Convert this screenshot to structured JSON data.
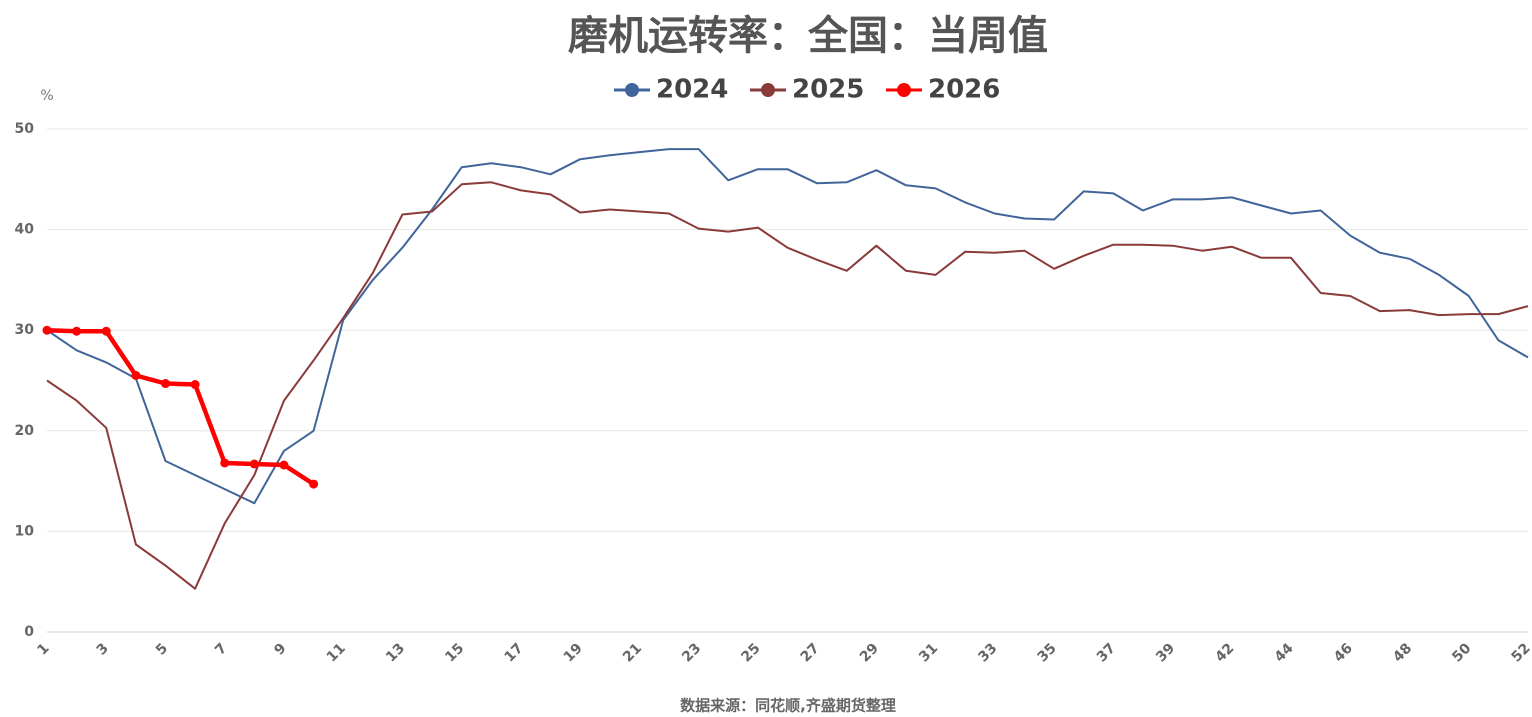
{
  "chart_data": {
    "type": "line",
    "title": "磨机运转率：全国：当周值",
    "y_unit": "%",
    "source": "数据来源：同花顺,齐盛期货整理",
    "categories": [
      1,
      null,
      3,
      null,
      5,
      null,
      7,
      null,
      9,
      null,
      11,
      null,
      13,
      null,
      15,
      null,
      17,
      null,
      19,
      null,
      21,
      null,
      23,
      null,
      25,
      null,
      27,
      null,
      29,
      null,
      31,
      null,
      33,
      null,
      35,
      null,
      37,
      null,
      39,
      null,
      42,
      null,
      44,
      null,
      46,
      null,
      48,
      null,
      50,
      null,
      52
    ],
    "series": [
      {
        "name": "2024",
        "color": "#41659a",
        "width": 2,
        "markers": false,
        "values": [
          30,
          28,
          26.8,
          25.2,
          17,
          15.6,
          14.2,
          12.8,
          18,
          20,
          31,
          35,
          38.2,
          42,
          46.2,
          46.6,
          46.2,
          45.5,
          47,
          47.4,
          47.7,
          48,
          48,
          44.9,
          46,
          46,
          44.6,
          44.7,
          45.9,
          44.4,
          44.1,
          42.7,
          41.6,
          41.1,
          41,
          43.8,
          43.6,
          41.9,
          43,
          43,
          43.2,
          42.4,
          41.6,
          41.9,
          39.4,
          37.7,
          37.1,
          35.5,
          33.4,
          29,
          27.3
        ]
      },
      {
        "name": "2025",
        "color": "#8b3a3a",
        "width": 2,
        "markers": false,
        "values": [
          25,
          23,
          20.3,
          8.7,
          6.6,
          4.3,
          10.8,
          15.6,
          23,
          27,
          31.2,
          35.7,
          41.5,
          41.8,
          44.5,
          44.7,
          43.9,
          43.5,
          41.7,
          42,
          41.8,
          41.6,
          40.1,
          39.8,
          40.2,
          38.2,
          37,
          35.9,
          38.4,
          35.9,
          35.5,
          37.8,
          37.7,
          37.9,
          36.1,
          37.4,
          38.5,
          38.5,
          38.4,
          37.9,
          38.3,
          37.2,
          37.2,
          33.7,
          33.4,
          31.9,
          32,
          31.5,
          31.6,
          31.6,
          32.4
        ]
      },
      {
        "name": "2026",
        "color": "#ff0000",
        "width": 4.5,
        "markers": true,
        "values": [
          30,
          29.9,
          29.9,
          25.5,
          24.7,
          24.6,
          16.8,
          16.7,
          16.6,
          14.7,
          null,
          null,
          null,
          null,
          null,
          null,
          null,
          null,
          null,
          null,
          null,
          null,
          null,
          null,
          null,
          null,
          null,
          null,
          null,
          null,
          null,
          null,
          null,
          null,
          null,
          null,
          null,
          null,
          null,
          null,
          null,
          null,
          null,
          null,
          null,
          null,
          null,
          null,
          null,
          null,
          null
        ]
      }
    ],
    "ylim": [
      0,
      50
    ],
    "yticks": [
      0,
      10,
      20,
      30,
      40,
      50
    ],
    "grid": true
  }
}
